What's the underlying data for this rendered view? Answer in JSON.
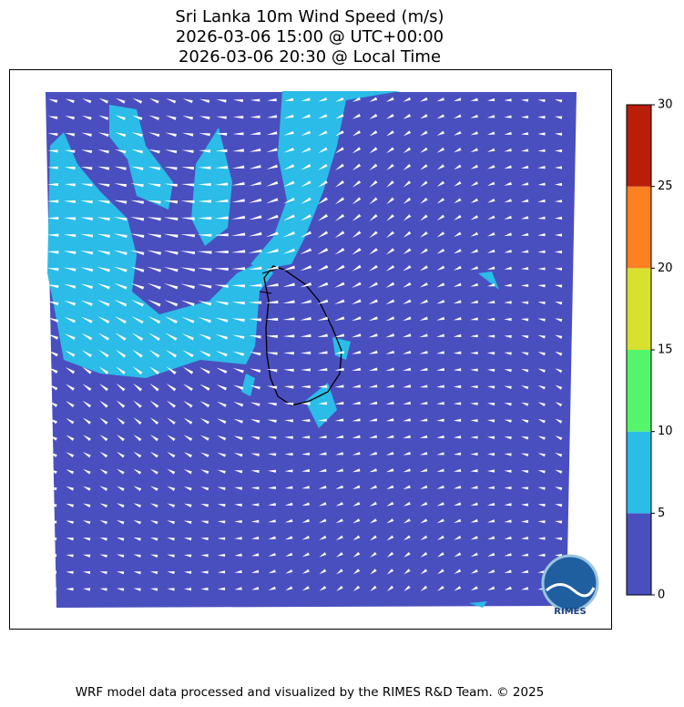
{
  "title": [
    "Sri Lanka 10m Wind Speed (m/s)",
    "2026-03-06 15:00 @ UTC+00:00",
    "2026-03-06 20:30 @ Local Time"
  ],
  "colorbar": {
    "ticks": [
      0,
      5,
      10,
      15,
      20,
      25,
      30
    ],
    "colors": [
      "#4a4fbf",
      "#2bbce8",
      "#55f56b",
      "#d8e030",
      "#fd8023",
      "#b81e0a"
    ]
  },
  "logo": "RIMES",
  "footer": "WRF model data processed and visualized by the RIMES R&D Team. © 2025"
}
